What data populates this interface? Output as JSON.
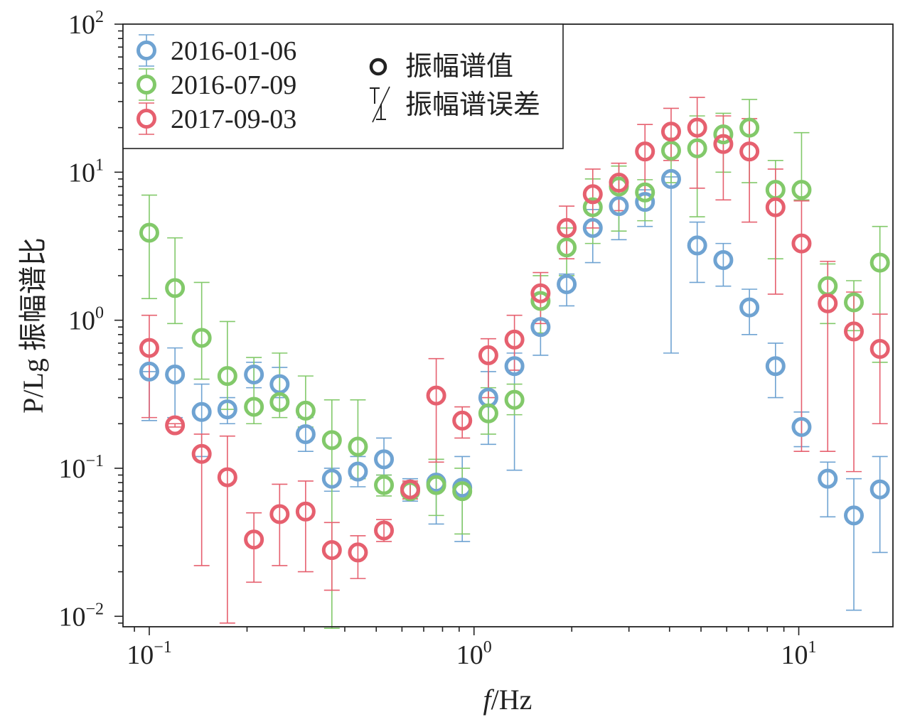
{
  "chart_data": {
    "type": "scatter",
    "xscale": "log",
    "yscale": "log",
    "xlim": [
      0.083,
      19.5
    ],
    "ylim": [
      0.0085,
      100
    ],
    "x_ticks": [
      {
        "value": 0.1,
        "base": "10",
        "exp": "−1"
      },
      {
        "value": 1,
        "base": "10",
        "exp": "0"
      },
      {
        "value": 10,
        "base": "10",
        "exp": "1"
      }
    ],
    "y_ticks": [
      {
        "value": 0.01,
        "base": "10",
        "exp": "−2"
      },
      {
        "value": 0.1,
        "base": "10",
        "exp": "−1"
      },
      {
        "value": 1,
        "base": "10",
        "exp": "0"
      },
      {
        "value": 10,
        "base": "10",
        "exp": "1"
      },
      {
        "value": 100,
        "base": "10",
        "exp": "2"
      }
    ],
    "xlabel_italic": "f",
    "xlabel_rest": "/Hz",
    "ylabel": "P/Lg 振幅谱比",
    "legend_position": "top-left",
    "legend_markers": [
      {
        "label": "振幅谱值",
        "kind": "circle"
      },
      {
        "label": "振幅谱误差",
        "kind": "errorbar"
      }
    ],
    "x": [
      0.1,
      0.12,
      0.145,
      0.174,
      0.21,
      0.252,
      0.303,
      0.365,
      0.439,
      0.528,
      0.636,
      0.765,
      0.92,
      1.107,
      1.332,
      1.603,
      1.929,
      2.321,
      2.793,
      3.361,
      4.045,
      4.867,
      5.857,
      7.048,
      8.48,
      10.2,
      12.28,
      14.78,
      17.78
    ],
    "series": [
      {
        "name": "2016-01-06",
        "color": "#6fa3d2",
        "y": [
          0.45,
          0.43,
          0.24,
          0.25,
          0.43,
          0.37,
          0.17,
          0.085,
          0.095,
          0.115,
          0.072,
          0.08,
          0.074,
          0.3,
          0.49,
          0.9,
          1.75,
          4.2,
          5.9,
          6.3,
          9.0,
          3.2,
          2.55,
          1.22,
          0.49,
          0.19,
          0.085,
          0.048,
          0.072
        ],
        "lo": [
          0.21,
          0.22,
          0.12,
          0.2,
          0.35,
          0.3,
          0.13,
          0.07,
          0.075,
          0.09,
          0.06,
          0.042,
          0.032,
          0.145,
          0.097,
          0.58,
          1.25,
          2.45,
          3.5,
          4.3,
          0.6,
          1.8,
          1.7,
          0.8,
          0.3,
          0.14,
          0.047,
          0.011,
          0.027
        ],
        "hi": [
          0.45,
          0.65,
          0.37,
          0.3,
          0.52,
          0.48,
          0.22,
          0.1,
          0.12,
          0.16,
          0.085,
          0.115,
          0.12,
          0.45,
          0.6,
          1.0,
          2.05,
          5.6,
          7.5,
          7.6,
          9.3,
          4.6,
          3.3,
          1.62,
          0.7,
          0.24,
          0.11,
          0.085,
          0.12
        ]
      },
      {
        "name": "2016-07-09",
        "color": "#82c96a",
        "y": [
          3.9,
          1.65,
          0.76,
          0.42,
          0.26,
          0.28,
          0.245,
          0.155,
          0.14,
          0.077,
          0.07,
          0.077,
          0.07,
          0.235,
          0.29,
          1.35,
          3.1,
          5.8,
          8.0,
          7.3,
          14.0,
          14.5,
          18.0,
          20.0,
          7.6,
          7.6,
          1.7,
          1.32,
          2.45
        ],
        "lo": [
          1.4,
          0.95,
          0.4,
          0.25,
          0.2,
          0.22,
          0.19,
          0.0083,
          0.085,
          0.065,
          0.062,
          0.048,
          0.036,
          0.17,
          0.23,
          0.82,
          2.0,
          3.3,
          4.0,
          4.7,
          8.5,
          5.0,
          10.0,
          8.5,
          2.6,
          6.5,
          0.95,
          0.85,
          0.52
        ],
        "hi": [
          7.0,
          3.6,
          1.8,
          0.98,
          0.56,
          0.6,
          0.42,
          0.29,
          0.29,
          0.09,
          0.08,
          0.115,
          0.1,
          0.35,
          0.37,
          2.0,
          4.2,
          9.0,
          11.0,
          8.9,
          17.0,
          24.0,
          25.0,
          31.0,
          12.0,
          18.5,
          2.4,
          1.85,
          4.3
        ]
      },
      {
        "name": "2017-09-03",
        "color": "#e6606f",
        "y": [
          0.65,
          0.195,
          0.125,
          0.087,
          0.033,
          0.049,
          0.051,
          0.028,
          0.027,
          0.038,
          0.072,
          0.31,
          0.21,
          0.58,
          0.74,
          1.52,
          4.2,
          7.1,
          8.5,
          13.8,
          18.8,
          20.0,
          15.5,
          13.8,
          5.8,
          3.3,
          1.3,
          0.84,
          0.64
        ],
        "lo": [
          0.22,
          0.19,
          0.022,
          0.009,
          0.017,
          0.022,
          0.02,
          0.015,
          0.018,
          0.032,
          0.062,
          0.11,
          0.16,
          0.3,
          0.46,
          0.95,
          2.6,
          4.2,
          5.5,
          7.0,
          12.0,
          7.8,
          6.5,
          4.6,
          1.5,
          0.13,
          0.13,
          0.095,
          0.2
        ],
        "hi": [
          1.08,
          0.2,
          0.17,
          0.165,
          0.05,
          0.078,
          0.082,
          0.043,
          0.035,
          0.045,
          0.082,
          0.55,
          0.26,
          0.75,
          1.08,
          2.1,
          5.9,
          10.5,
          11.5,
          21.0,
          27.0,
          32.0,
          24.0,
          23.0,
          10.5,
          6.4,
          2.5,
          1.55,
          1.1
        ]
      }
    ]
  }
}
